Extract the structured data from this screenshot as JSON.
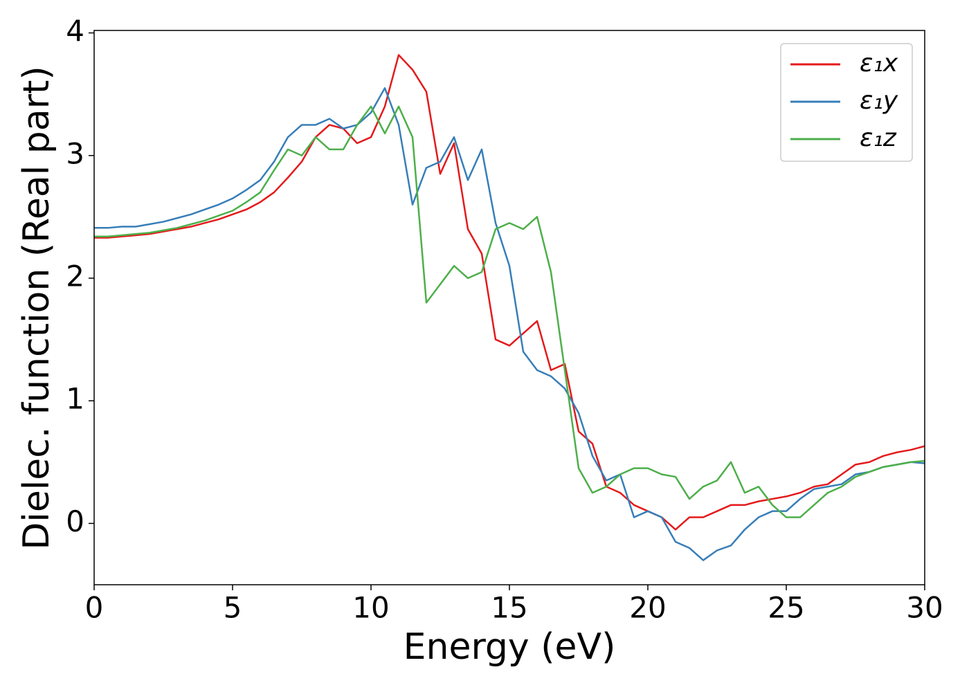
{
  "chart_data": {
    "type": "line",
    "xlabel": "Energy (eV)",
    "ylabel": "Dielec. function (Real part)",
    "x": [
      0,
      0.5,
      1,
      1.5,
      2,
      2.5,
      3,
      3.5,
      4,
      4.5,
      5,
      5.5,
      6,
      6.5,
      7,
      7.5,
      8,
      8.5,
      9,
      9.5,
      10,
      10.5,
      11,
      11.5,
      12,
      12.5,
      13,
      13.5,
      14,
      14.5,
      15,
      15.5,
      16,
      16.5,
      17,
      17.5,
      18,
      18.5,
      19,
      19.5,
      20,
      20.5,
      21,
      21.5,
      22,
      22.5,
      23,
      23.5,
      24,
      24.5,
      25,
      25.5,
      26,
      26.5,
      27,
      27.5,
      28,
      28.5,
      29,
      29.5,
      30
    ],
    "series": [
      {
        "name": "ε₁x",
        "color": "#e41a1c",
        "values": [
          2.33,
          2.33,
          2.34,
          2.35,
          2.36,
          2.38,
          2.4,
          2.42,
          2.45,
          2.48,
          2.52,
          2.56,
          2.62,
          2.7,
          2.82,
          2.95,
          3.15,
          3.25,
          3.22,
          3.1,
          3.15,
          3.4,
          3.82,
          3.7,
          3.52,
          2.85,
          3.1,
          2.4,
          2.2,
          1.5,
          1.45,
          1.55,
          1.65,
          1.25,
          1.3,
          0.75,
          0.65,
          0.3,
          0.25,
          0.15,
          0.1,
          0.05,
          -0.05,
          0.05,
          0.05,
          0.1,
          0.15,
          0.15,
          0.18,
          0.2,
          0.22,
          0.25,
          0.3,
          0.32,
          0.4,
          0.48,
          0.5,
          0.55,
          0.58,
          0.6,
          0.63
        ]
      },
      {
        "name": "ε₁y",
        "color": "#377eb8",
        "values": [
          2.41,
          2.41,
          2.42,
          2.42,
          2.44,
          2.46,
          2.49,
          2.52,
          2.56,
          2.6,
          2.65,
          2.72,
          2.8,
          2.95,
          3.15,
          3.25,
          3.25,
          3.3,
          3.22,
          3.25,
          3.35,
          3.55,
          3.25,
          2.6,
          2.9,
          2.95,
          3.15,
          2.8,
          3.05,
          2.45,
          2.1,
          1.4,
          1.25,
          1.2,
          1.1,
          0.9,
          0.55,
          0.35,
          0.4,
          0.05,
          0.1,
          0.05,
          -0.15,
          -0.2,
          -0.3,
          -0.22,
          -0.18,
          -0.05,
          0.05,
          0.1,
          0.1,
          0.2,
          0.28,
          0.3,
          0.32,
          0.4,
          0.42,
          0.46,
          0.48,
          0.5,
          0.49
        ]
      },
      {
        "name": "ε₁z",
        "color": "#4daf4a",
        "values": [
          2.34,
          2.34,
          2.35,
          2.36,
          2.37,
          2.39,
          2.41,
          2.44,
          2.47,
          2.51,
          2.55,
          2.62,
          2.7,
          2.88,
          3.05,
          3.0,
          3.15,
          3.05,
          3.05,
          3.25,
          3.4,
          3.18,
          3.4,
          3.15,
          1.8,
          1.95,
          2.1,
          2.0,
          2.05,
          2.4,
          2.45,
          2.4,
          2.5,
          2.05,
          1.25,
          0.45,
          0.25,
          0.3,
          0.4,
          0.45,
          0.45,
          0.4,
          0.38,
          0.2,
          0.3,
          0.35,
          0.5,
          0.25,
          0.3,
          0.15,
          0.05,
          0.05,
          0.15,
          0.25,
          0.3,
          0.38,
          0.42,
          0.46,
          0.48,
          0.5,
          0.51
        ]
      }
    ],
    "xlim": [
      0,
      30
    ],
    "xticks": [
      0,
      5,
      10,
      15,
      20,
      25,
      30
    ],
    "ylim": [
      -0.5,
      4.02
    ],
    "yticks": [
      0,
      1,
      2,
      3,
      4
    ],
    "grid": false,
    "legend": "upper right"
  }
}
